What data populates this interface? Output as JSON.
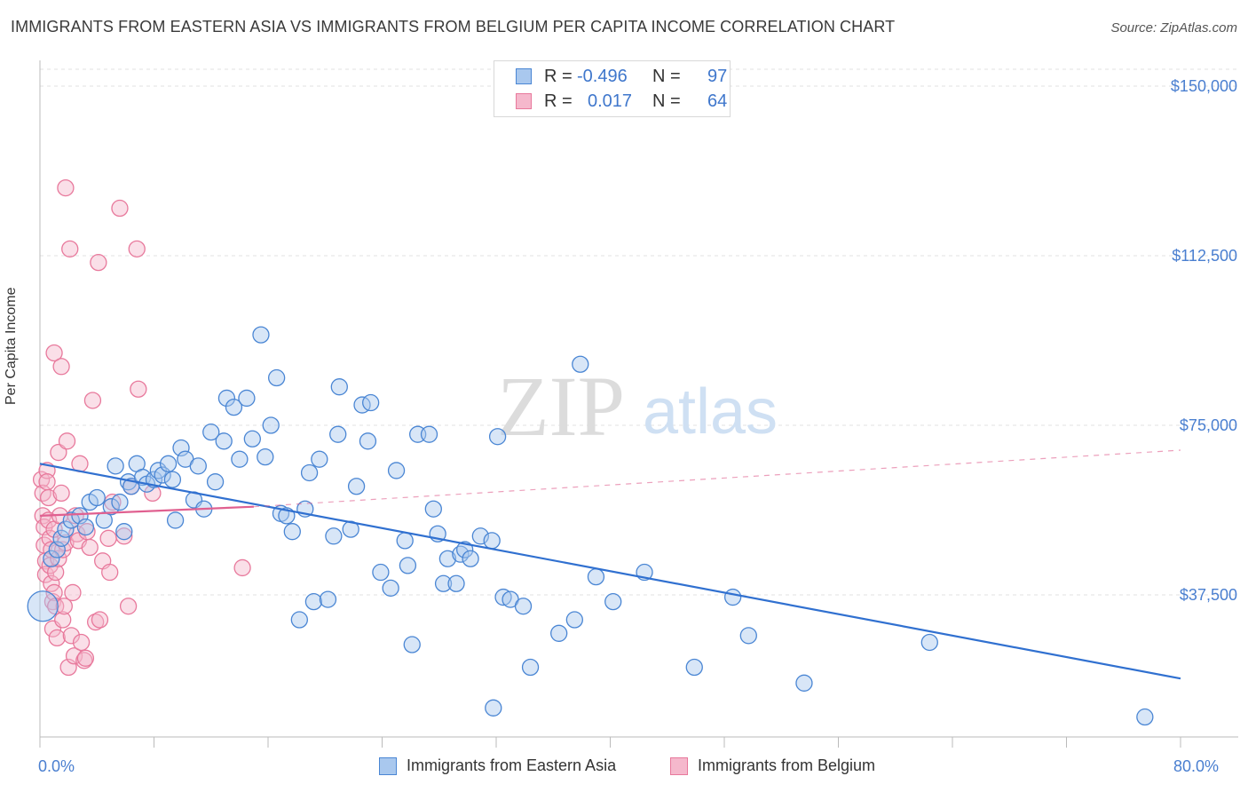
{
  "header": {
    "title": "IMMIGRANTS FROM EASTERN ASIA VS IMMIGRANTS FROM BELGIUM PER CAPITA INCOME CORRELATION CHART",
    "source": "Source: ZipAtlas.com"
  },
  "watermark": {
    "zip": "ZIP",
    "atlas": "atlas"
  },
  "legend_top": {
    "rows": [
      {
        "r_label": "R =",
        "r_value": "-0.496",
        "n_label": "N =",
        "n_value": "97"
      },
      {
        "r_label": "R =",
        "r_value": "0.017",
        "n_label": "N =",
        "n_value": "64"
      }
    ]
  },
  "colors": {
    "blue_fill": "#a9c8ee",
    "blue_stroke": "#4a86d4",
    "blue_line": "#3070d0",
    "pink_fill": "#f5b8cc",
    "pink_stroke": "#e8799c",
    "pink_line": "#e06090",
    "tick_text": "#4a7fd0"
  },
  "chart_data": {
    "type": "scatter",
    "title": "IMMIGRANTS FROM EASTERN ASIA VS IMMIGRANTS FROM BELGIUM PER CAPITA INCOME CORRELATION CHART",
    "xlabel": "",
    "ylabel": "Per Capita Income",
    "xlim": [
      0,
      80
    ],
    "ylim": [
      0,
      155000
    ],
    "x_tick_labels": [
      "0.0%",
      "80.0%"
    ],
    "y_tick_labels": [
      "$37,500",
      "$75,000",
      "$112,500",
      "$150,000"
    ],
    "y_ticks": [
      37500,
      75000,
      112500,
      150000
    ],
    "grid": true,
    "legend_position": "bottom",
    "series": [
      {
        "name": "Immigrants from Eastern Asia",
        "color": "blue",
        "R": -0.496,
        "N": 97,
        "trend": {
          "x": [
            0,
            80
          ],
          "y": [
            66500,
            19000
          ]
        },
        "points": [
          [
            0.2,
            35000
          ],
          [
            0.8,
            45500
          ],
          [
            1.2,
            47500
          ],
          [
            1.5,
            50000
          ],
          [
            1.8,
            52000
          ],
          [
            2.2,
            54000
          ],
          [
            2.8,
            55000
          ],
          [
            3.2,
            52500
          ],
          [
            3.5,
            58000
          ],
          [
            4.0,
            59000
          ],
          [
            4.5,
            54000
          ],
          [
            5.0,
            57000
          ],
          [
            5.3,
            66000
          ],
          [
            5.6,
            58000
          ],
          [
            5.9,
            51500
          ],
          [
            6.2,
            62500
          ],
          [
            6.4,
            61500
          ],
          [
            6.8,
            66500
          ],
          [
            7.2,
            63500
          ],
          [
            7.5,
            62000
          ],
          [
            8.0,
            63000
          ],
          [
            8.3,
            65000
          ],
          [
            8.6,
            64000
          ],
          [
            9.0,
            66500
          ],
          [
            9.3,
            63000
          ],
          [
            9.5,
            54000
          ],
          [
            9.9,
            70000
          ],
          [
            10.2,
            67500
          ],
          [
            10.8,
            58500
          ],
          [
            11.1,
            66000
          ],
          [
            11.5,
            56500
          ],
          [
            12.0,
            73500
          ],
          [
            12.3,
            62500
          ],
          [
            12.9,
            71500
          ],
          [
            13.1,
            81000
          ],
          [
            13.6,
            79000
          ],
          [
            14.0,
            67500
          ],
          [
            14.5,
            81000
          ],
          [
            14.9,
            72000
          ],
          [
            15.5,
            95000
          ],
          [
            15.8,
            68000
          ],
          [
            16.2,
            75000
          ],
          [
            16.6,
            85500
          ],
          [
            16.9,
            55500
          ],
          [
            17.3,
            55000
          ],
          [
            17.7,
            51500
          ],
          [
            18.2,
            32000
          ],
          [
            18.6,
            56500
          ],
          [
            18.9,
            64500
          ],
          [
            19.2,
            36000
          ],
          [
            19.6,
            67500
          ],
          [
            20.2,
            36500
          ],
          [
            20.6,
            50500
          ],
          [
            20.9,
            73000
          ],
          [
            21.0,
            83500
          ],
          [
            21.8,
            52000
          ],
          [
            22.2,
            61500
          ],
          [
            22.6,
            79500
          ],
          [
            23.0,
            71500
          ],
          [
            23.2,
            80000
          ],
          [
            23.9,
            42500
          ],
          [
            24.6,
            39000
          ],
          [
            25.0,
            65000
          ],
          [
            25.6,
            49500
          ],
          [
            25.8,
            44000
          ],
          [
            26.1,
            26500
          ],
          [
            26.5,
            73000
          ],
          [
            27.3,
            73000
          ],
          [
            27.6,
            56500
          ],
          [
            27.9,
            51000
          ],
          [
            28.3,
            40000
          ],
          [
            28.6,
            45500
          ],
          [
            29.2,
            40000
          ],
          [
            29.5,
            46500
          ],
          [
            29.8,
            47500
          ],
          [
            30.2,
            45500
          ],
          [
            30.9,
            50500
          ],
          [
            31.7,
            49500
          ],
          [
            31.8,
            12500
          ],
          [
            32.1,
            72500
          ],
          [
            32.5,
            37000
          ],
          [
            33.0,
            36500
          ],
          [
            33.9,
            35000
          ],
          [
            34.4,
            21500
          ],
          [
            36.4,
            29000
          ],
          [
            37.5,
            32000
          ],
          [
            37.9,
            88500
          ],
          [
            39.0,
            41500
          ],
          [
            40.2,
            36000
          ],
          [
            42.4,
            42500
          ],
          [
            45.9,
            21500
          ],
          [
            48.6,
            37000
          ],
          [
            49.7,
            28500
          ],
          [
            53.6,
            18000
          ],
          [
            62.4,
            27000
          ],
          [
            77.5,
            10500
          ]
        ]
      },
      {
        "name": "Immigrants from Belgium",
        "color": "pink",
        "R": 0.017,
        "N": 64,
        "trend": {
          "x": [
            0,
            15
          ],
          "y": [
            55000,
            57000
          ]
        },
        "trend_dashed": {
          "x": [
            15,
            80
          ],
          "y": [
            57000,
            69500
          ]
        },
        "points": [
          [
            0.1,
            63000
          ],
          [
            0.2,
            60000
          ],
          [
            0.2,
            55000
          ],
          [
            0.3,
            52500
          ],
          [
            0.3,
            48500
          ],
          [
            0.4,
            45000
          ],
          [
            0.4,
            42000
          ],
          [
            0.5,
            65000
          ],
          [
            0.5,
            62500
          ],
          [
            0.6,
            59000
          ],
          [
            0.6,
            54000
          ],
          [
            0.7,
            50000
          ],
          [
            0.7,
            44000
          ],
          [
            0.8,
            40000
          ],
          [
            0.8,
            47500
          ],
          [
            0.9,
            30000
          ],
          [
            0.9,
            36000
          ],
          [
            1.0,
            38000
          ],
          [
            1.0,
            52000
          ],
          [
            1.0,
            91000
          ],
          [
            1.1,
            35000
          ],
          [
            1.1,
            42500
          ],
          [
            1.2,
            28000
          ],
          [
            1.3,
            69000
          ],
          [
            1.3,
            45500
          ],
          [
            1.4,
            55000
          ],
          [
            1.5,
            88000
          ],
          [
            1.5,
            60000
          ],
          [
            1.6,
            47500
          ],
          [
            1.6,
            32000
          ],
          [
            1.7,
            35000
          ],
          [
            1.8,
            127500
          ],
          [
            1.8,
            49000
          ],
          [
            1.9,
            71500
          ],
          [
            2.0,
            21500
          ],
          [
            2.1,
            114000
          ],
          [
            2.2,
            28500
          ],
          [
            2.3,
            38000
          ],
          [
            2.4,
            24000
          ],
          [
            2.5,
            55000
          ],
          [
            2.6,
            51000
          ],
          [
            2.7,
            49500
          ],
          [
            2.8,
            66500
          ],
          [
            2.9,
            27000
          ],
          [
            3.1,
            23000
          ],
          [
            3.2,
            23500
          ],
          [
            3.3,
            51500
          ],
          [
            3.5,
            48000
          ],
          [
            3.7,
            80500
          ],
          [
            3.9,
            31500
          ],
          [
            4.1,
            111000
          ],
          [
            4.2,
            32000
          ],
          [
            4.4,
            45000
          ],
          [
            4.8,
            50000
          ],
          [
            4.9,
            42500
          ],
          [
            5.1,
            58000
          ],
          [
            5.6,
            123000
          ],
          [
            5.9,
            50500
          ],
          [
            6.2,
            35000
          ],
          [
            6.8,
            114000
          ],
          [
            6.4,
            61500
          ],
          [
            6.9,
            83000
          ],
          [
            7.9,
            60000
          ],
          [
            14.2,
            43500
          ]
        ]
      }
    ]
  },
  "legend_bottom": {
    "items": [
      {
        "label": "Immigrants from Eastern Asia"
      },
      {
        "label": "Immigrants from Belgium"
      }
    ]
  }
}
